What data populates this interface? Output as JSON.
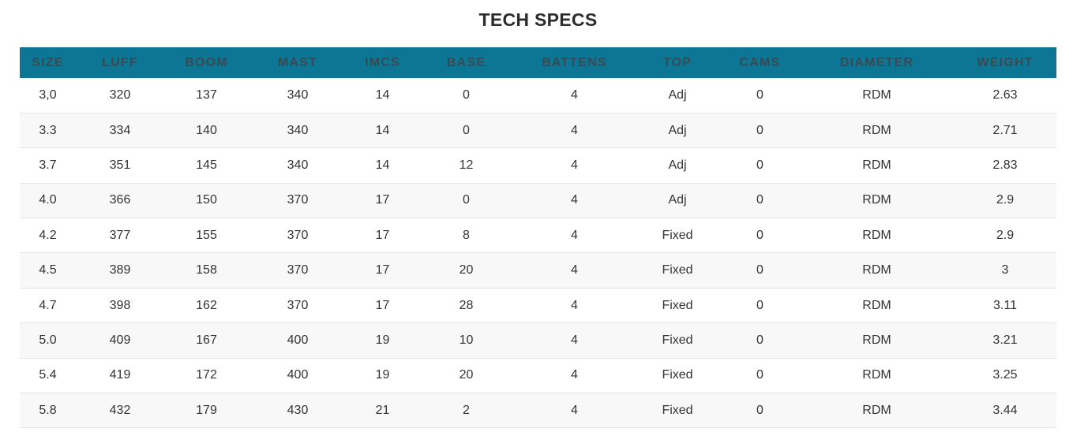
{
  "title": "TECH SPECS",
  "colors": {
    "header_bg": "#0d7694",
    "header_text": "#3a4a52",
    "row_alt_bg": "#f8f8f8",
    "row_border": "#e4e4e4",
    "text": "#333333"
  },
  "table": {
    "headers": [
      "SIZE",
      "LUFF",
      "BOOM",
      "MAST",
      "IMCS",
      "BASE",
      "BATTENS",
      "TOP",
      "CAMS",
      "DIAMETER",
      "WEIGHT"
    ],
    "rows": [
      [
        "3,0",
        "320",
        "137",
        "340",
        "14",
        "0",
        "4",
        "Adj",
        "0",
        "RDM",
        "2.63"
      ],
      [
        "3.3",
        "334",
        "140",
        "340",
        "14",
        "0",
        "4",
        "Adj",
        "0",
        "RDM",
        "2.71"
      ],
      [
        "3.7",
        "351",
        "145",
        "340",
        "14",
        "12",
        "4",
        "Adj",
        "0",
        "RDM",
        "2.83"
      ],
      [
        "4.0",
        "366",
        "150",
        "370",
        "17",
        "0",
        "4",
        "Adj",
        "0",
        "RDM",
        "2.9"
      ],
      [
        "4.2",
        "377",
        "155",
        "370",
        "17",
        "8",
        "4",
        "Fixed",
        "0",
        "RDM",
        "2.9"
      ],
      [
        "4.5",
        "389",
        "158",
        "370",
        "17",
        "20",
        "4",
        "Fixed",
        "0",
        "RDM",
        "3"
      ],
      [
        "4.7",
        "398",
        "162",
        "370",
        "17",
        "28",
        "4",
        "Fixed",
        "0",
        "RDM",
        "3.11"
      ],
      [
        "5.0",
        "409",
        "167",
        "400",
        "19",
        "10",
        "4",
        "Fixed",
        "0",
        "RDM",
        "3.21"
      ],
      [
        "5.4",
        "419",
        "172",
        "400",
        "19",
        "20",
        "4",
        "Fixed",
        "0",
        "RDM",
        "3.25"
      ],
      [
        "5.8",
        "432",
        "179",
        "430",
        "21",
        "2",
        "4",
        "Fixed",
        "0",
        "RDM",
        "3.44"
      ]
    ]
  }
}
